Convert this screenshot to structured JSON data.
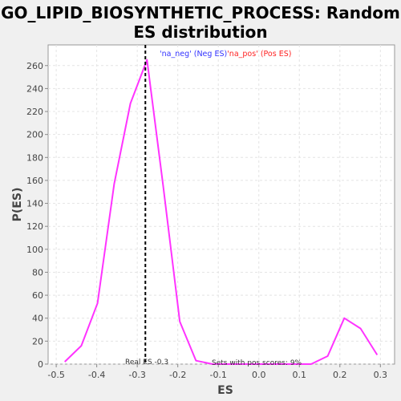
{
  "chart_data": {
    "type": "line",
    "title_line1": "GO_LIPID_BIOSYNTHETIC_PROCESS: Random",
    "title_line2": "ES distribution",
    "xlabel": "ES",
    "ylabel": "P(ES)",
    "xlim": [
      -0.52,
      0.335
    ],
    "ylim": [
      0,
      278
    ],
    "x_ticks": [
      -0.5,
      -0.4,
      -0.3,
      -0.2,
      -0.1,
      0.0,
      0.1,
      0.2,
      0.3
    ],
    "x_tick_labels": [
      "-0.5",
      "-0.4",
      "-0.3",
      "-0.2",
      "-0.1",
      "0.0",
      "0.1",
      "0.2",
      "0.3"
    ],
    "y_ticks": [
      0,
      20,
      40,
      60,
      80,
      100,
      120,
      140,
      160,
      180,
      200,
      220,
      240,
      260
    ],
    "y_tick_labels": [
      "0",
      "20",
      "40",
      "60",
      "80",
      "100",
      "120",
      "140",
      "160",
      "180",
      "200",
      "220",
      "240",
      "260"
    ],
    "grid": true,
    "legend": {
      "position": "top-center",
      "neg_label": "'na_neg' (Neg ES)",
      "pos_label": "'na_pos' (Pos ES)",
      "neg_color": "#3333ff",
      "pos_color": "#ff2222"
    },
    "series": [
      {
        "color": "#ff33ff",
        "x": [
          -0.479,
          -0.438,
          -0.398,
          -0.357,
          -0.317,
          -0.276,
          -0.236,
          -0.195,
          -0.155,
          -0.114,
          -0.073,
          -0.033,
          0.008,
          0.048,
          0.089,
          0.129,
          0.17,
          0.211,
          0.251,
          0.292
        ],
        "y": [
          2,
          16,
          53,
          157,
          227,
          265,
          155,
          37,
          3,
          0,
          0,
          0,
          0,
          0,
          0,
          0,
          7,
          40,
          31,
          8
        ]
      }
    ],
    "real_es": -0.28,
    "real_es_label": "Real ES -0.3",
    "pos_scores_label": "Sets with pos scores: 9%"
  }
}
